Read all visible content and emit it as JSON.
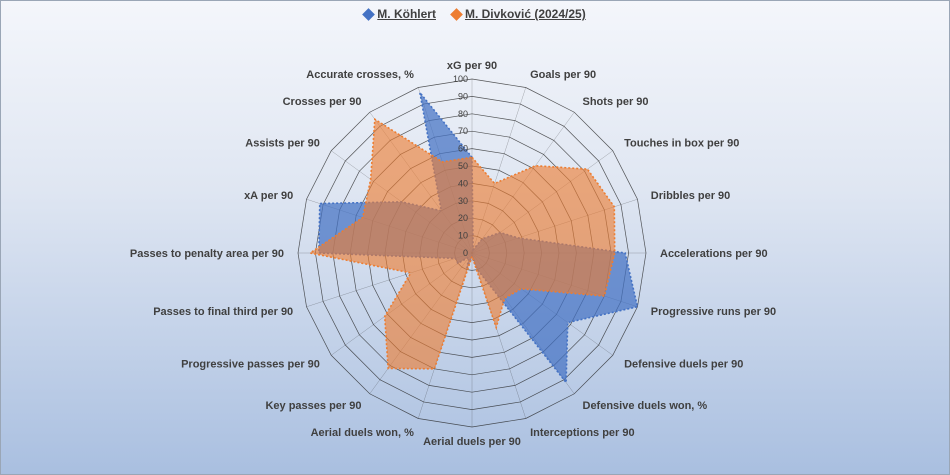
{
  "colors": {
    "series1": "#4472c4",
    "series2": "#ed7d31",
    "grid": "#222222"
  },
  "chart_data": {
    "type": "radar",
    "title": "",
    "rmin": 0,
    "rmax": 100,
    "ticks": [
      10,
      20,
      30,
      40,
      50,
      60,
      70,
      80,
      90,
      100
    ],
    "grid": true,
    "legend_position": "top",
    "categories": [
      "xG per 90",
      "Goals per 90",
      "Shots per 90",
      "Touches in box per 90",
      "Dribbles per 90",
      "Accelerations per 90",
      "Progressive runs per 90",
      "Defensive duels per 90",
      "Defensive duels won, %",
      "Interceptions per 90",
      "Aerial duels per 90",
      "Aerial duels won, %",
      "Key passes per 90",
      "Progressive passes per 90",
      "Passes to final third per 90",
      "Passes to penalty area per 90",
      "xA per 90",
      "Assists per 90",
      "Crosses per 90",
      "Accurate crosses, %"
    ],
    "series": [
      {
        "name": "M. Köhlert",
        "values": [
          55,
          2,
          10,
          20,
          28,
          88,
          100,
          68,
          92,
          10,
          2,
          10,
          3,
          10,
          10,
          88,
          92,
          50,
          30,
          97
        ]
      },
      {
        "name": "M. Divković (2024/25)",
        "values": [
          55,
          42,
          62,
          82,
          86,
          82,
          80,
          35,
          32,
          45,
          2,
          70,
          82,
          62,
          37,
          93,
          66,
          72,
          95,
          55
        ]
      }
    ]
  }
}
